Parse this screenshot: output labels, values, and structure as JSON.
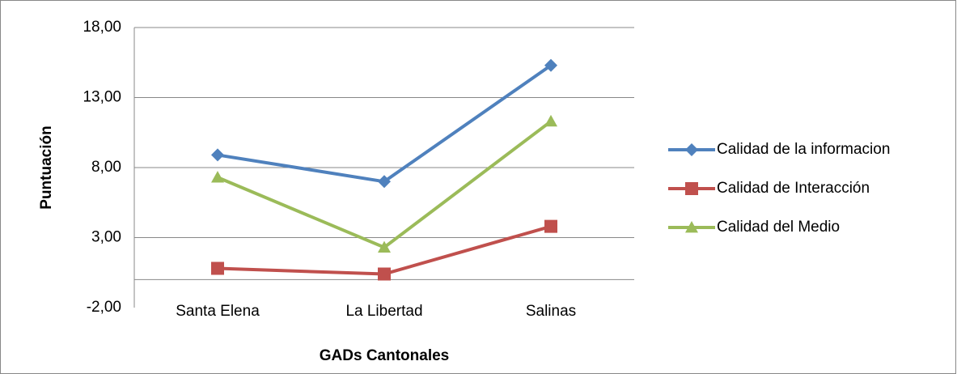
{
  "chart_data": {
    "type": "line",
    "x_label": "GADs Cantonales",
    "y_label": "Puntuación",
    "categories": [
      "Santa Elena",
      "La Libertad",
      "Salinas"
    ],
    "series": [
      {
        "name": "Calidad de la informacion",
        "color": "#4f81bd",
        "marker": "diamond",
        "values": [
          8.9,
          7.0,
          15.3
        ]
      },
      {
        "name": "Calidad de Interacción",
        "color": "#c0504d",
        "marker": "square",
        "values": [
          0.8,
          0.4,
          3.8
        ]
      },
      {
        "name": "Calidad del Medio",
        "color": "#9bbb59",
        "marker": "triangle",
        "values": [
          7.3,
          2.3,
          11.3
        ]
      }
    ],
    "ylim": [
      -2,
      18
    ],
    "yticks": [
      {
        "value": -2,
        "label": "-2,00"
      },
      {
        "value": 3,
        "label": "3,00"
      },
      {
        "value": 8,
        "label": "8,00"
      },
      {
        "value": 13,
        "label": "13,00"
      },
      {
        "value": 18,
        "label": "18,00"
      }
    ],
    "grid": true,
    "legend": "right"
  }
}
